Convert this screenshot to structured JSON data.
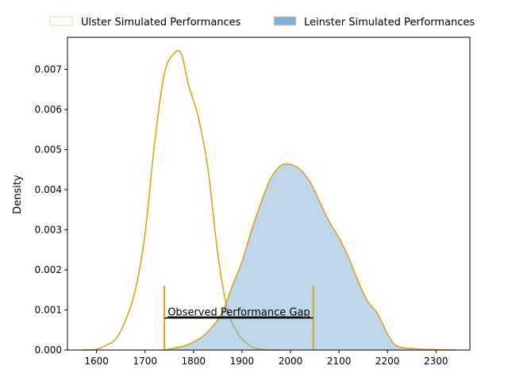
{
  "chart_data": {
    "type": "area",
    "ylabel": "Density",
    "xlabel": "",
    "xlim": [
      1540,
      2370
    ],
    "ylim": [
      0,
      0.0078
    ],
    "x_ticks": [
      1600,
      1700,
      1800,
      1900,
      2000,
      2100,
      2200,
      2300
    ],
    "y_ticks": [
      0.0,
      0.001,
      0.002,
      0.003,
      0.004,
      0.005,
      0.006,
      0.007
    ],
    "y_tick_labels": [
      "0.000",
      "0.001",
      "0.002",
      "0.003",
      "0.004",
      "0.005",
      "0.006",
      "0.007"
    ],
    "legend_position": "top, above plot",
    "series": [
      {
        "name": "Ulster Simulated Performances",
        "fill": false,
        "line_color": "#daa520",
        "legend_edge": "#f0d79a",
        "points": [
          [
            1570,
            0.0
          ],
          [
            1600,
            2e-05
          ],
          [
            1620,
            0.00012
          ],
          [
            1640,
            0.00028
          ],
          [
            1660,
            0.00075
          ],
          [
            1680,
            0.0015
          ],
          [
            1700,
            0.0029
          ],
          [
            1720,
            0.0052
          ],
          [
            1740,
            0.0069
          ],
          [
            1760,
            0.0074
          ],
          [
            1775,
            0.00738
          ],
          [
            1790,
            0.0066
          ],
          [
            1810,
            0.0058
          ],
          [
            1830,
            0.0045
          ],
          [
            1850,
            0.0024
          ],
          [
            1870,
            0.001
          ],
          [
            1890,
            0.00045
          ],
          [
            1900,
            0.00028
          ],
          [
            1920,
            8e-05
          ],
          [
            1940,
            2e-05
          ],
          [
            1960,
            0.0
          ],
          [
            1980,
            0.0
          ]
        ]
      },
      {
        "name": "Leinster Simulated Performances",
        "fill": true,
        "fill_color": "#7fb0d8",
        "line_color": "#daa520",
        "points": [
          [
            1740,
            0.0
          ],
          [
            1780,
            0.0001
          ],
          [
            1800,
            0.0002
          ],
          [
            1820,
            0.00035
          ],
          [
            1840,
            0.0006
          ],
          [
            1860,
            0.00095
          ],
          [
            1880,
            0.0016
          ],
          [
            1900,
            0.0022
          ],
          [
            1920,
            0.003
          ],
          [
            1940,
            0.0037
          ],
          [
            1960,
            0.0043
          ],
          [
            1980,
            0.0046
          ],
          [
            2000,
            0.00463
          ],
          [
            2020,
            0.0045
          ],
          [
            2040,
            0.0042
          ],
          [
            2060,
            0.0037
          ],
          [
            2080,
            0.0032
          ],
          [
            2100,
            0.0028
          ],
          [
            2120,
            0.0023
          ],
          [
            2140,
            0.0017
          ],
          [
            2160,
            0.0012
          ],
          [
            2180,
            0.0009
          ],
          [
            2200,
            0.0004
          ],
          [
            2220,
            0.0001
          ],
          [
            2260,
            3e-05
          ],
          [
            2300,
            1e-05
          ],
          [
            2340,
            0.0
          ]
        ]
      }
    ],
    "annotation": {
      "text": "Observed Performance Gap",
      "x_start": 1740,
      "x_end": 2047,
      "y": 0.0008,
      "tick_top": 0.0016
    }
  }
}
